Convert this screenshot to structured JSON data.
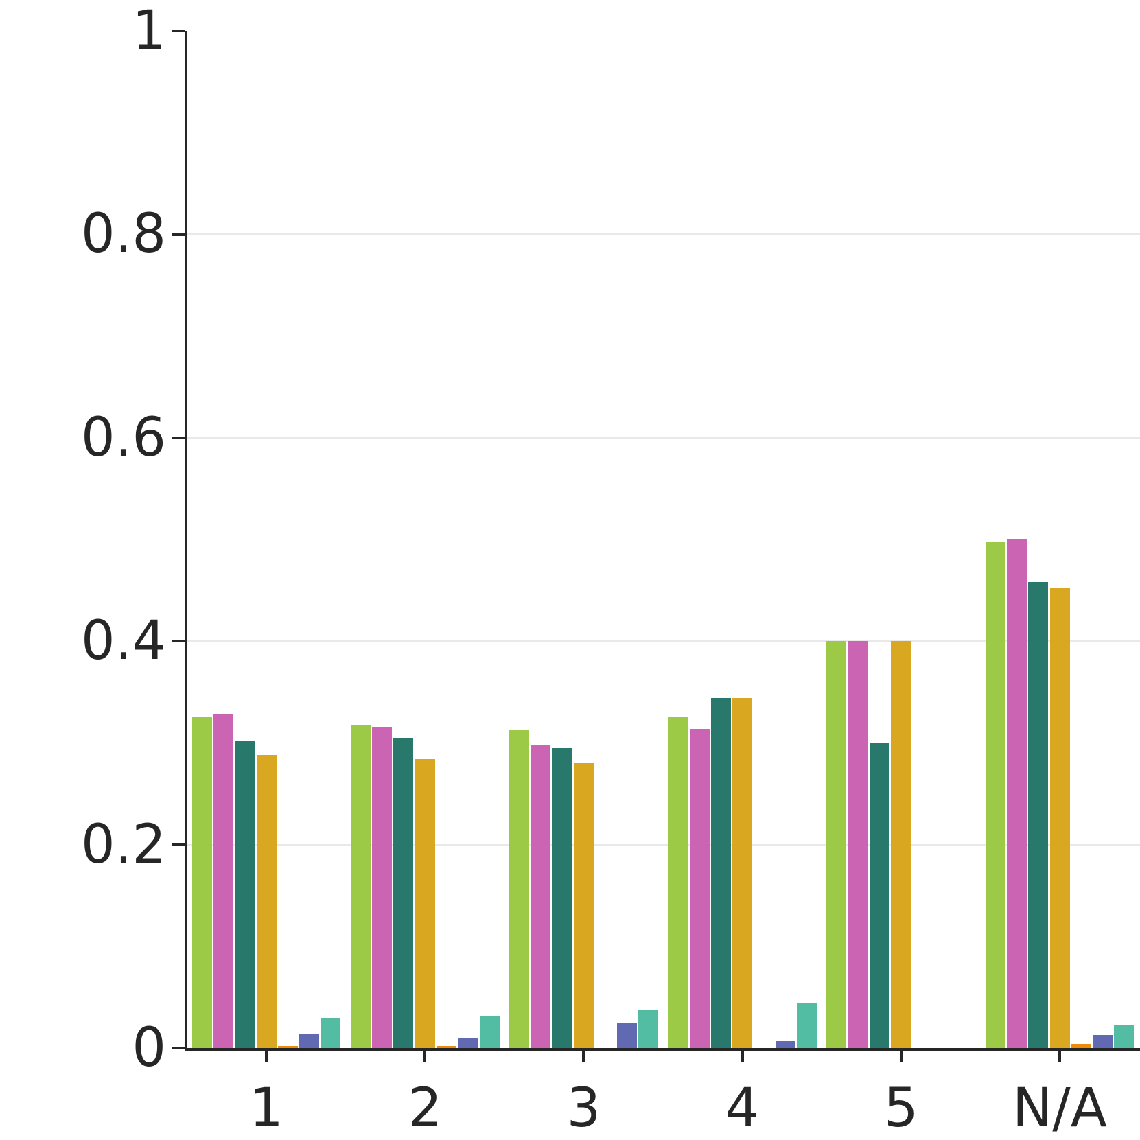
{
  "chart_data": {
    "type": "bar",
    "title": "",
    "xlabel": "",
    "ylabel": "",
    "categories": [
      "1",
      "2",
      "3",
      "4",
      "5",
      "N/A"
    ],
    "series": [
      {
        "name": "green",
        "color": "#9cc946",
        "values": [
          0.325,
          0.318,
          0.313,
          0.326,
          0.4,
          0.497
        ]
      },
      {
        "name": "magenta",
        "color": "#cb65b3",
        "values": [
          0.328,
          0.316,
          0.298,
          0.314,
          0.4,
          0.5
        ]
      },
      {
        "name": "teal",
        "color": "#29786c",
        "values": [
          0.302,
          0.304,
          0.295,
          0.344,
          0.3,
          0.458
        ]
      },
      {
        "name": "gold",
        "color": "#daa721",
        "values": [
          0.288,
          0.284,
          0.281,
          0.344,
          0.4,
          0.453
        ]
      },
      {
        "name": "orange",
        "color": "#ee8a0e",
        "values": [
          0.002,
          0.002,
          0.0,
          0.0,
          0.0,
          0.004
        ]
      },
      {
        "name": "blue",
        "color": "#6169b2",
        "values": [
          0.014,
          0.01,
          0.025,
          0.007,
          0.0,
          0.013
        ]
      },
      {
        "name": "turquoise",
        "color": "#53bda4",
        "values": [
          0.03,
          0.031,
          0.037,
          0.044,
          0.0,
          0.022
        ]
      }
    ],
    "ylim": [
      0,
      1
    ],
    "yticks": [
      0,
      0.2,
      0.4,
      0.6,
      0.8,
      1
    ],
    "ytick_labels": [
      "0",
      "0.2",
      "0.4",
      "0.6",
      "0.8",
      "1"
    ],
    "xtick_labels": [
      "1",
      "2",
      "3",
      "4",
      "5",
      "N/A"
    ],
    "grid": {
      "horizontal_at": [
        0.2,
        0.4,
        0.6,
        0.8
      ],
      "color": "#e9e9e9"
    },
    "axis_color": "#262626",
    "text_color": "#262626",
    "background": "#ffffff",
    "legend_position": "none"
  }
}
